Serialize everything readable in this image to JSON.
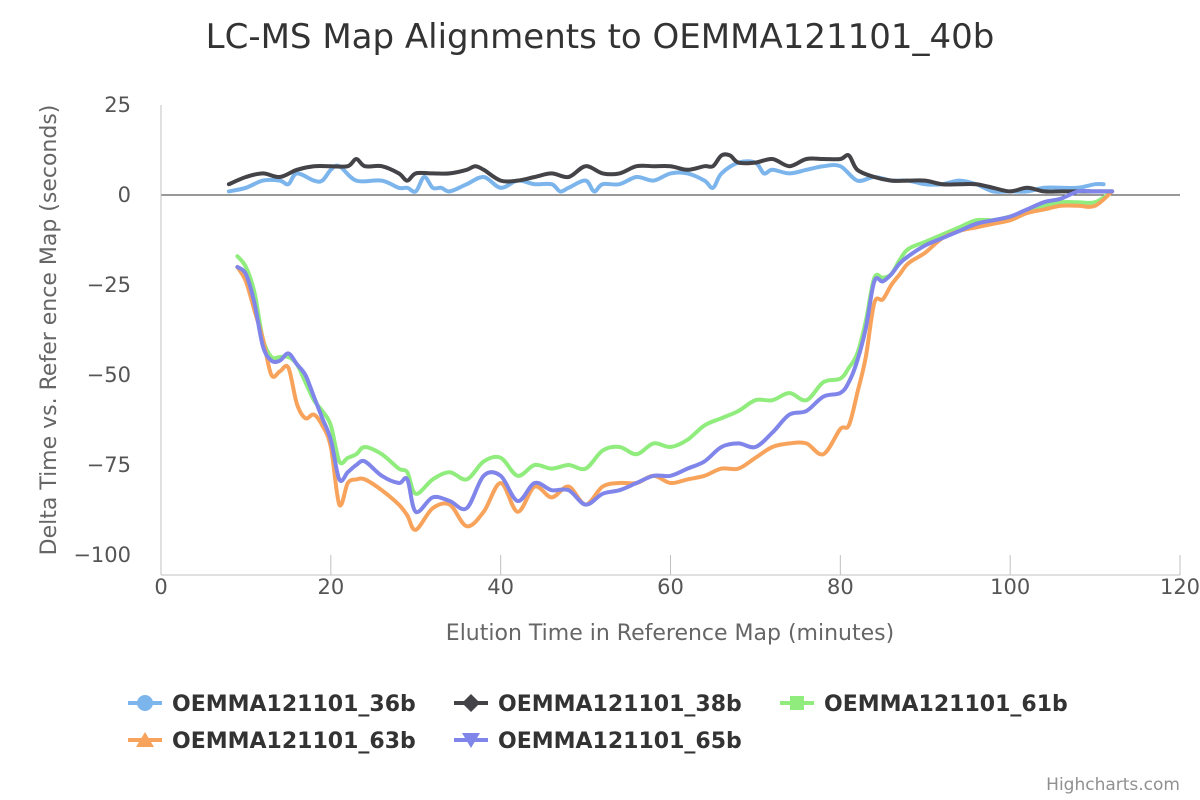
{
  "chart_data": {
    "type": "line",
    "title": "LC-MS Map Alignments to OEMMA121101_40b",
    "xlabel": "Elution Time in Reference Map (minutes)",
    "ylabel": "Delta Time vs. Refer ence Map (seconds)",
    "xlim": [
      0,
      120
    ],
    "ylim": [
      -100,
      25
    ],
    "xticks": [
      "0",
      "20",
      "40",
      "60",
      "80",
      "100",
      "120"
    ],
    "yticks": [
      "25",
      "0",
      "−25",
      "−50",
      "−75",
      "−100"
    ],
    "xtick_values": [
      0,
      20,
      40,
      60,
      80,
      100,
      120
    ],
    "ytick_values": [
      25,
      0,
      -25,
      -50,
      -75,
      -100
    ],
    "grid": "horizontal zero line",
    "legend_position": "bottom",
    "series": [
      {
        "name": "OEMMA121101_36b",
        "color": "#7cb5ec",
        "marker": "circle",
        "x": [
          8,
          10,
          12,
          14,
          15,
          16,
          18,
          19,
          20,
          21,
          23,
          26,
          28,
          29,
          30,
          31,
          32,
          33,
          34,
          36,
          38,
          40,
          42,
          44,
          46,
          47,
          48,
          50,
          51,
          52,
          54,
          56,
          58,
          60,
          62,
          64,
          65,
          66,
          68,
          70,
          71,
          72,
          74,
          76,
          78,
          80,
          82,
          84,
          86,
          88,
          90,
          92,
          94,
          96,
          98,
          100,
          102,
          104,
          106,
          108,
          110,
          111
        ],
        "y": [
          1,
          2,
          4,
          4,
          3,
          6,
          4,
          4,
          7,
          8,
          4,
          4,
          2,
          2,
          1,
          5,
          2,
          2,
          1,
          3,
          5,
          2,
          4,
          3,
          3,
          1,
          2,
          4,
          1,
          3,
          3,
          5,
          4,
          6,
          6,
          4,
          2,
          6,
          9,
          9,
          6,
          7,
          6,
          7,
          8,
          8,
          4,
          5,
          4,
          4,
          3,
          3,
          4,
          3,
          1,
          1,
          1,
          2,
          2,
          2,
          3,
          3
        ]
      },
      {
        "name": "OEMMA121101_38b",
        "color": "#434348",
        "marker": "diamond",
        "x": [
          8,
          10,
          12,
          14,
          16,
          18,
          20,
          22,
          23,
          24,
          26,
          28,
          29,
          30,
          32,
          34,
          36,
          37,
          38,
          40,
          42,
          44,
          46,
          48,
          50,
          52,
          54,
          56,
          58,
          60,
          62,
          64,
          65,
          66,
          67,
          68,
          70,
          72,
          74,
          76,
          78,
          80,
          81,
          82,
          84,
          86,
          88,
          90,
          92,
          94,
          96,
          98,
          100,
          102,
          104,
          106,
          108,
          110,
          112
        ],
        "y": [
          3,
          5,
          6,
          5,
          7,
          8,
          8,
          8,
          10,
          8,
          8,
          6,
          4,
          6,
          6,
          6,
          7,
          8,
          7,
          4,
          4,
          5,
          6,
          5,
          8,
          6,
          6,
          8,
          8,
          8,
          7,
          8,
          8,
          11,
          11,
          9,
          9,
          10,
          8,
          10,
          10,
          10,
          11,
          7,
          5,
          4,
          4,
          4,
          3,
          3,
          3,
          2,
          1,
          2,
          1,
          1,
          1,
          1,
          1
        ]
      },
      {
        "name": "OEMMA121101_61b",
        "color": "#90ed7d",
        "marker": "square",
        "x": [
          9,
          10,
          11,
          12,
          13,
          14,
          15,
          16,
          17,
          18,
          19,
          20,
          21,
          22,
          23,
          24,
          26,
          28,
          29,
          30,
          32,
          34,
          36,
          38,
          40,
          42,
          44,
          46,
          48,
          50,
          52,
          54,
          56,
          58,
          60,
          62,
          64,
          66,
          68,
          70,
          72,
          74,
          76,
          78,
          80,
          81,
          82,
          83,
          84,
          85,
          86,
          87,
          88,
          90,
          92,
          94,
          96,
          98,
          100,
          102,
          104,
          106,
          108,
          110,
          112
        ],
        "y": [
          -17,
          -20,
          -27,
          -40,
          -45,
          -45,
          -45,
          -47,
          -52,
          -57,
          -60,
          -64,
          -74,
          -73,
          -72,
          -70,
          -72,
          -76,
          -77,
          -83,
          -79,
          -77,
          -79,
          -74,
          -73,
          -78,
          -75,
          -76,
          -75,
          -76,
          -71,
          -70,
          -72,
          -69,
          -70,
          -68,
          -64,
          -62,
          -60,
          -57,
          -57,
          -55,
          -57,
          -52,
          -51,
          -48,
          -44,
          -35,
          -23,
          -23,
          -22,
          -18,
          -15,
          -13,
          -11,
          -9,
          -7,
          -7,
          -6,
          -5,
          -3,
          -2,
          -2,
          -2,
          1
        ]
      },
      {
        "name": "OEMMA121101_63b",
        "color": "#f7a35c",
        "marker": "triangle",
        "x": [
          9,
          10,
          11,
          12,
          13,
          14,
          15,
          16,
          17,
          18,
          19,
          20,
          21,
          22,
          23,
          24,
          26,
          28,
          29,
          30,
          32,
          34,
          36,
          38,
          40,
          42,
          44,
          46,
          48,
          50,
          52,
          54,
          56,
          58,
          60,
          62,
          64,
          66,
          68,
          70,
          72,
          74,
          76,
          78,
          80,
          81,
          82,
          83,
          84,
          85,
          86,
          87,
          88,
          90,
          92,
          94,
          96,
          98,
          100,
          102,
          104,
          106,
          108,
          110,
          112
        ],
        "y": [
          -20,
          -24,
          -32,
          -40,
          -50,
          -49,
          -48,
          -58,
          -62,
          -61,
          -64,
          -70,
          -86,
          -80,
          -79,
          -79,
          -82,
          -86,
          -89,
          -93,
          -87,
          -86,
          -92,
          -88,
          -80,
          -88,
          -81,
          -84,
          -81,
          -86,
          -81,
          -80,
          -80,
          -78,
          -80,
          -79,
          -78,
          -76,
          -76,
          -73,
          -70,
          -69,
          -69,
          -72,
          -65,
          -64,
          -55,
          -45,
          -30,
          -29,
          -25,
          -22,
          -19,
          -16,
          -12,
          -10,
          -9,
          -8,
          -7,
          -5,
          -4,
          -3,
          -3,
          -3,
          1
        ]
      },
      {
        "name": "OEMMA121101_65b",
        "color": "#8085e9",
        "marker": "triangle-down",
        "x": [
          9,
          10,
          11,
          12,
          13,
          14,
          15,
          16,
          17,
          18,
          19,
          20,
          21,
          22,
          23,
          24,
          26,
          28,
          29,
          30,
          32,
          34,
          36,
          38,
          40,
          42,
          44,
          46,
          48,
          50,
          52,
          54,
          56,
          58,
          60,
          62,
          64,
          66,
          68,
          70,
          72,
          74,
          76,
          78,
          80,
          81,
          82,
          83,
          84,
          85,
          86,
          87,
          88,
          90,
          92,
          94,
          96,
          98,
          100,
          102,
          104,
          106,
          108,
          110,
          112
        ],
        "y": [
          -20,
          -22,
          -30,
          -42,
          -46,
          -46,
          -44,
          -47,
          -50,
          -56,
          -62,
          -68,
          -79,
          -77,
          -75,
          -74,
          -78,
          -80,
          -79,
          -88,
          -84,
          -85,
          -87,
          -78,
          -78,
          -85,
          -80,
          -82,
          -82,
          -86,
          -83,
          -82,
          -80,
          -78,
          -78,
          -76,
          -74,
          -70,
          -69,
          -70,
          -66,
          -61,
          -60,
          -56,
          -55,
          -52,
          -46,
          -37,
          -24,
          -24,
          -22,
          -19,
          -17,
          -14,
          -12,
          -10,
          -8,
          -7,
          -6,
          -4,
          -2,
          -1,
          1,
          1,
          1
        ]
      }
    ]
  },
  "credits": "Highcharts.com"
}
